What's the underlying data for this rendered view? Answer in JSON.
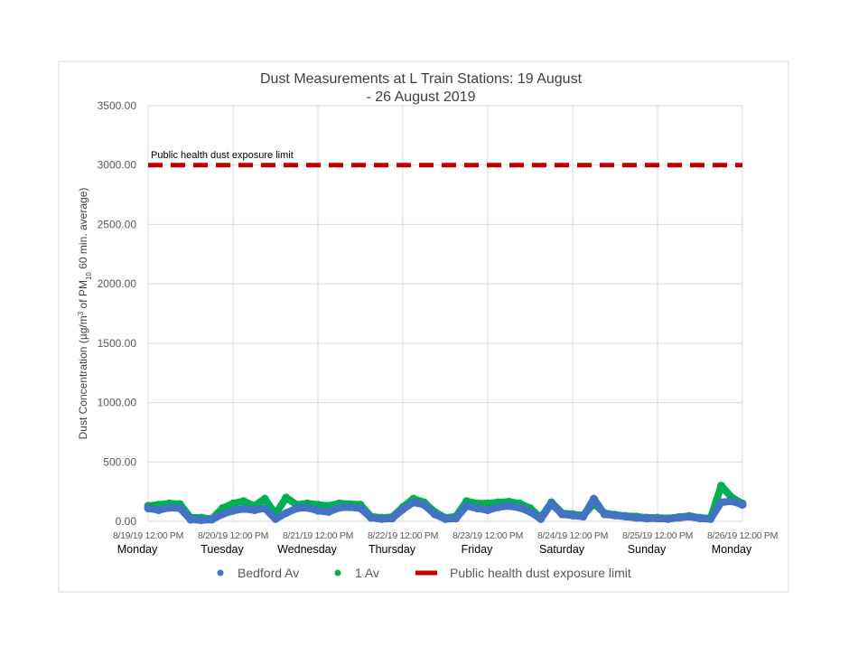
{
  "chart_data": {
    "type": "scatter",
    "title_lines": [
      "Dust Measurements at L Train Stations: 19 August",
      "- 26 August 2019"
    ],
    "ylabel": "Dust Concentration (µg/m³ of PM₁₀ 60 min. average)",
    "xlabel": "",
    "ylim": [
      0,
      3500
    ],
    "y_ticks": [
      "0.00",
      "500.00",
      "1000.00",
      "1500.00",
      "2000.00",
      "2500.00",
      "3000.00",
      "3500.00"
    ],
    "y_tick_values": [
      0,
      500,
      1000,
      1500,
      2000,
      2500,
      3000,
      3500
    ],
    "xlim": [
      "2019-08-19 12:00",
      "2019-08-26 12:00"
    ],
    "x_ticks": [
      "8/19/19 12:00 PM",
      "8/20/19 12:00 PM",
      "8/21/19 12:00 PM",
      "8/22/19 12:00 PM",
      "8/23/19 12:00 PM",
      "8/24/19 12:00 PM",
      "8/25/19 12:00 PM",
      "8/26/19 12:00 PM"
    ],
    "day_labels": [
      "Monday",
      "Tuesday",
      "Wednesday",
      "Thursday",
      "Friday",
      "Saturday",
      "Sunday",
      "Monday"
    ],
    "x_interval_hours": 3,
    "x_start": "2019-08-19 12:00",
    "grid": true,
    "legend_position": "bottom",
    "series": [
      {
        "name": "1 Av",
        "color": "#00B050",
        "marker": "circle",
        "values": [
          130,
          140,
          150,
          145,
          30,
          30,
          20,
          110,
          150,
          170,
          130,
          190,
          60,
          200,
          140,
          150,
          140,
          130,
          150,
          145,
          140,
          40,
          30,
          35,
          120,
          190,
          160,
          80,
          30,
          40,
          170,
          150,
          150,
          160,
          165,
          150,
          110,
          30,
          160,
          70,
          60,
          50,
          150,
          70,
          55,
          45,
          40,
          30,
          30,
          25,
          35,
          45,
          30,
          25,
          300,
          200,
          150
        ]
      },
      {
        "name": "Bedford Av",
        "color": "#4472C4",
        "marker": "circle",
        "values": [
          110,
          95,
          115,
          110,
          15,
          10,
          15,
          60,
          90,
          105,
          95,
          110,
          20,
          70,
          110,
          115,
          90,
          80,
          115,
          120,
          110,
          30,
          20,
          25,
          100,
          160,
          140,
          60,
          20,
          25,
          130,
          110,
          95,
          120,
          130,
          115,
          80,
          20,
          150,
          60,
          50,
          40,
          190,
          60,
          50,
          40,
          30,
          25,
          25,
          20,
          30,
          40,
          25,
          20,
          160,
          170,
          140
        ]
      },
      {
        "name": "Public health dust exposure limit",
        "color": "#C00000",
        "style": "dashed",
        "constant": 3000
      }
    ],
    "legend_order": [
      "Bedford Av",
      "1 Av",
      "Public health dust exposure limit"
    ],
    "annotations": [
      {
        "text": "Public health dust exposure limit",
        "at_value": 3000
      }
    ]
  }
}
